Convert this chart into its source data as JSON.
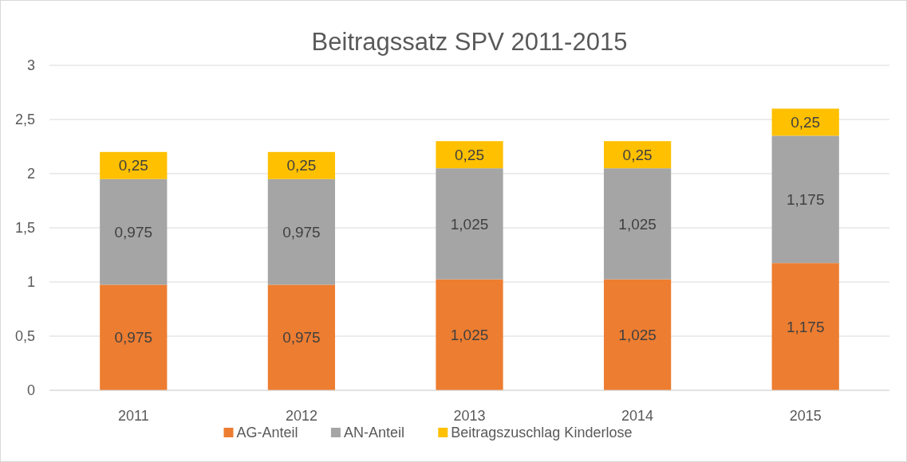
{
  "chart_data": {
    "type": "bar",
    "title": "Beitragssatz SPV 2011-2015",
    "stacked": true,
    "categories": [
      "2011",
      "2012",
      "2013",
      "2014",
      "2015"
    ],
    "series": [
      {
        "name": "AG-Anteil",
        "color": "#ed7d31",
        "values": [
          0.975,
          0.975,
          1.025,
          1.025,
          1.175
        ],
        "value_labels": [
          "0,975",
          "0,975",
          "1,025",
          "1,025",
          "1,175"
        ]
      },
      {
        "name": "AN-Anteil",
        "color": "#a5a5a5",
        "values": [
          0.975,
          0.975,
          1.025,
          1.025,
          1.175
        ],
        "value_labels": [
          "0,975",
          "0,975",
          "1,025",
          "1,025",
          "1,175"
        ]
      },
      {
        "name": "Beitragszuschlag Kinderlose",
        "color": "#ffc000",
        "values": [
          0.25,
          0.25,
          0.25,
          0.25,
          0.25
        ],
        "value_labels": [
          "0,25",
          "0,25",
          "0,25",
          "0,25",
          "0,25"
        ]
      }
    ],
    "ylim": [
      0,
      3
    ],
    "yticks": [
      0,
      {
        "value": 0.5,
        "label": "0,5"
      },
      1,
      {
        "value": 1.5,
        "label": "1,5"
      },
      2,
      {
        "value": 2.5,
        "label": "2,5"
      },
      3
    ],
    "grid": "y",
    "legend": "bottom"
  }
}
